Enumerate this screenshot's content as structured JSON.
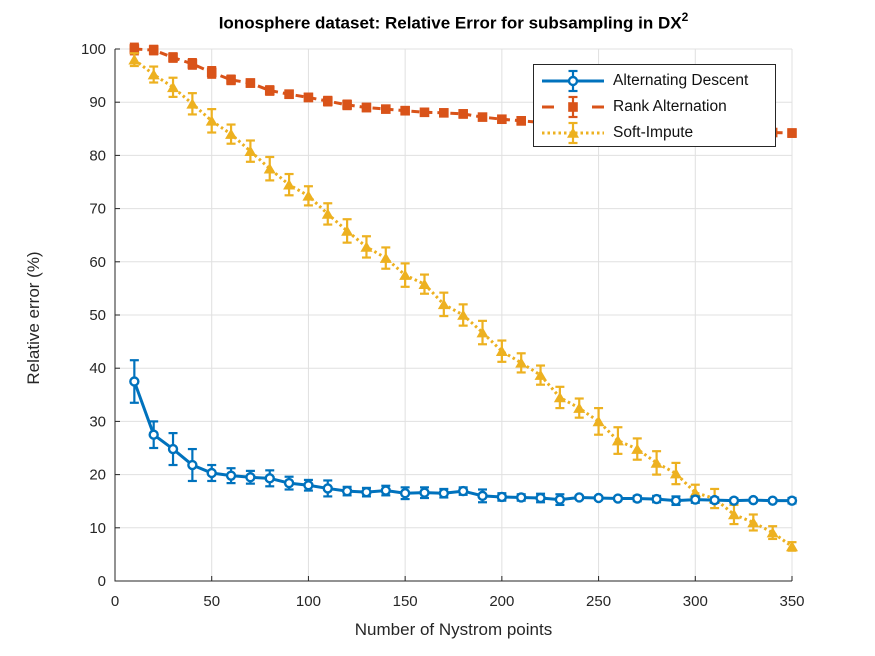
{
  "figure": {
    "title_main": "Ionosphere dataset: Relative Error for subsampling in DX",
    "title_sup": "2",
    "xlabel": "Number of Nystrom points",
    "ylabel": "Relative error (%)"
  },
  "colors": {
    "axis": "#262626",
    "grid": "#e0e0e0",
    "background": "#ffffff",
    "blue": "#0072BD",
    "orange": "#D95319",
    "yellow": "#EDB120"
  },
  "chart_data": {
    "type": "line",
    "title": "Ionosphere dataset: Relative Error for subsampling in DX^2",
    "xlabel": "Number of Nystrom points",
    "ylabel": "Relative error (%)",
    "xlim": [
      0,
      350
    ],
    "ylim": [
      0,
      100
    ],
    "x_ticks": [
      0,
      50,
      100,
      150,
      200,
      250,
      300,
      350
    ],
    "y_ticks": [
      0,
      10,
      20,
      30,
      40,
      50,
      60,
      70,
      80,
      90,
      100
    ],
    "grid": true,
    "legend_position": "upper-right-inside",
    "error_bars": true,
    "x": [
      10,
      20,
      30,
      40,
      50,
      60,
      70,
      80,
      90,
      100,
      110,
      120,
      130,
      140,
      150,
      160,
      170,
      180,
      190,
      200,
      210,
      220,
      230,
      240,
      250,
      260,
      270,
      280,
      290,
      300,
      310,
      320,
      330,
      340,
      350
    ],
    "series": [
      {
        "name": "Alternating Descent",
        "color": "#0072BD",
        "marker": "circle",
        "marker_fill": "open",
        "line_style": "solid",
        "values": [
          37.5,
          27.5,
          24.8,
          21.8,
          20.3,
          19.8,
          19.5,
          19.3,
          18.4,
          18.0,
          17.4,
          16.9,
          16.7,
          17.0,
          16.5,
          16.6,
          16.5,
          16.9,
          16.0,
          15.8,
          15.7,
          15.6,
          15.3,
          15.7,
          15.6,
          15.5,
          15.5,
          15.4,
          15.1,
          15.3,
          15.2,
          15.1,
          15.2,
          15.1,
          15.1
        ],
        "errors": [
          4.0,
          2.5,
          3.0,
          3.0,
          1.5,
          1.4,
          1.2,
          1.5,
          1.2,
          1.0,
          1.5,
          0.8,
          0.8,
          0.9,
          1.1,
          1.0,
          0.8,
          0.7,
          1.2,
          0.7,
          0.6,
          0.8,
          1.0,
          0.3,
          0.3,
          0.3,
          0.5,
          0.6,
          0.8,
          0.6,
          0.5,
          0.4,
          0.3,
          0.3,
          0.5
        ]
      },
      {
        "name": "Rank Alternation",
        "color": "#D95319",
        "marker": "square",
        "marker_fill": "filled",
        "line_style": "dashed",
        "values": [
          100.0,
          99.8,
          98.4,
          97.2,
          95.6,
          94.2,
          93.6,
          92.2,
          91.5,
          90.9,
          90.2,
          89.5,
          89.0,
          88.7,
          88.4,
          88.1,
          88.0,
          87.8,
          87.2,
          86.8,
          86.5,
          86.2,
          86.0,
          85.8,
          85.6,
          85.4,
          85.2,
          85.0,
          84.8,
          84.7,
          84.6,
          84.5,
          84.4,
          84.3,
          84.2
        ],
        "errors": [
          1.0,
          0.8,
          0.8,
          0.9,
          1.0,
          0.8,
          0.7,
          0.8,
          0.7,
          0.7,
          0.8,
          0.8,
          0.7,
          0.6,
          0.7,
          0.6,
          0.6,
          0.7,
          0.6,
          0.6,
          0.7,
          0.5,
          0.5,
          0.5,
          0.5,
          0.5,
          0.5,
          0.5,
          0.5,
          0.5,
          0.5,
          0.5,
          0.5,
          0.6,
          0.7
        ]
      },
      {
        "name": "Soft-Impute",
        "color": "#EDB120",
        "marker": "triangle",
        "marker_fill": "filled",
        "line_style": "dotted",
        "values": [
          98.0,
          95.2,
          92.8,
          89.7,
          86.5,
          84.0,
          80.8,
          77.5,
          74.5,
          72.4,
          69.0,
          65.8,
          62.8,
          60.7,
          57.5,
          55.8,
          52.0,
          50.0,
          46.7,
          43.2,
          41.0,
          38.7,
          34.5,
          32.5,
          30.0,
          26.4,
          24.8,
          22.2,
          20.2,
          16.6,
          15.5,
          12.5,
          11.0,
          9.1,
          6.5
        ],
        "errors": [
          1.2,
          1.5,
          1.8,
          2.0,
          2.2,
          1.8,
          2.0,
          2.2,
          2.0,
          1.8,
          2.0,
          2.2,
          2.0,
          2.0,
          2.2,
          1.8,
          2.2,
          2.0,
          2.2,
          2.0,
          1.8,
          1.8,
          2.0,
          1.8,
          2.5,
          2.5,
          2.0,
          2.2,
          2.0,
          1.5,
          1.8,
          1.8,
          1.5,
          1.2,
          0.8
        ]
      }
    ]
  }
}
